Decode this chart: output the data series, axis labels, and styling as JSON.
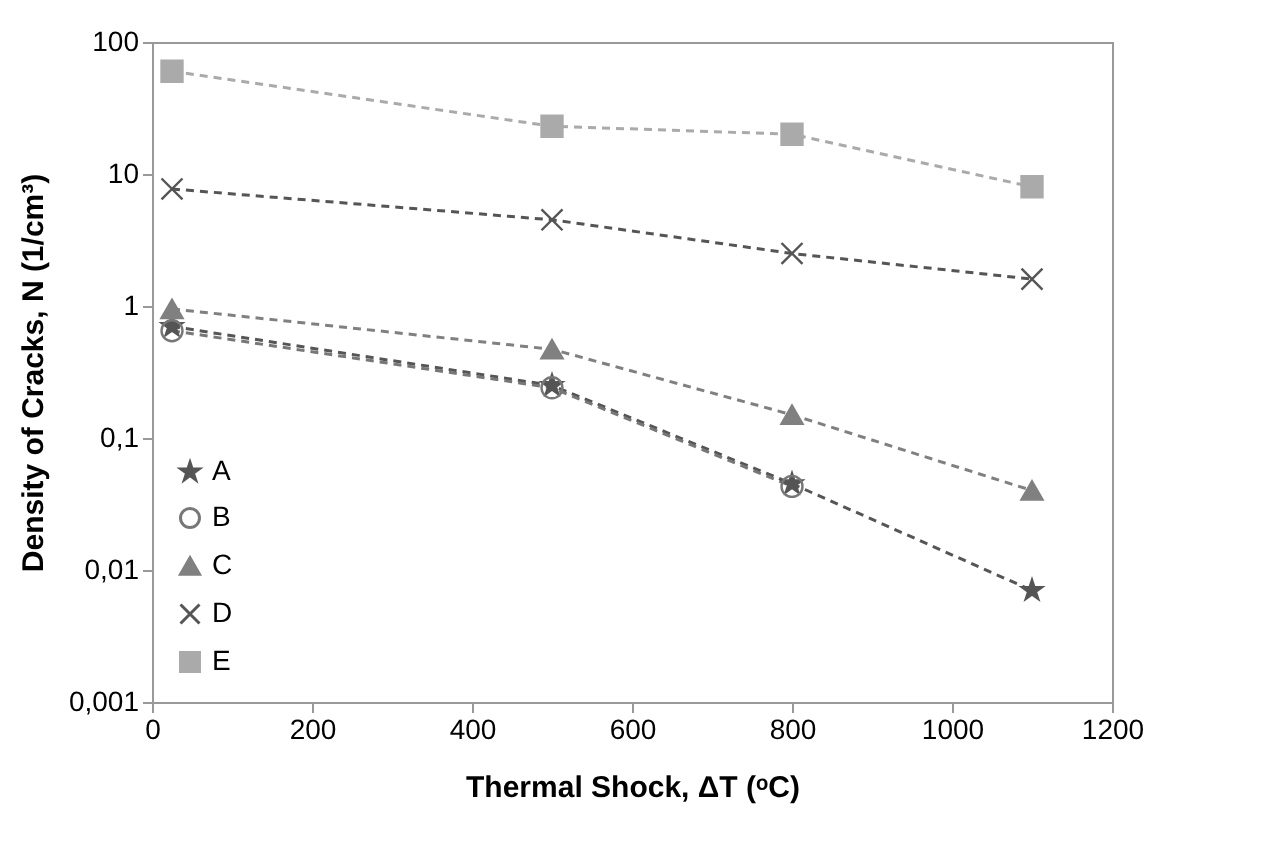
{
  "chart_data": {
    "type": "line",
    "xlabel": "Thermal Shock, ΔT (ᵒC)",
    "ylabel": "Density of Cracks, N (1/cm³)",
    "x": [
      25,
      500,
      800,
      1100
    ],
    "series": [
      {
        "name": "A",
        "color": "#555555",
        "marker": "star",
        "values": [
          0.7,
          0.25,
          0.045,
          0.007
        ]
      },
      {
        "name": "B",
        "color": "#777777",
        "marker": "circle",
        "values": [
          0.65,
          0.24,
          0.043,
          null
        ]
      },
      {
        "name": "C",
        "color": "#808080",
        "marker": "triangle",
        "values": [
          0.95,
          0.47,
          0.15,
          0.04
        ]
      },
      {
        "name": "D",
        "color": "#555555",
        "marker": "cross",
        "values": [
          7.7,
          4.5,
          2.5,
          1.6
        ]
      },
      {
        "name": "E",
        "color": "#aaaaaa",
        "marker": "square",
        "values": [
          60,
          23,
          20,
          8
        ]
      }
    ],
    "log": "y",
    "xlim": [
      0,
      1200
    ],
    "xticks": [
      0,
      200,
      400,
      600,
      800,
      1000,
      1200
    ],
    "ylim": [
      0.001,
      100
    ],
    "yticks": [
      {
        "value": 0.001,
        "label": "0,001"
      },
      {
        "value": 0.01,
        "label": "0,01"
      },
      {
        "value": 0.1,
        "label": "0,1"
      },
      1,
      10,
      100
    ],
    "grid": false,
    "legend": "bottom left",
    "line_style": "dashed"
  }
}
